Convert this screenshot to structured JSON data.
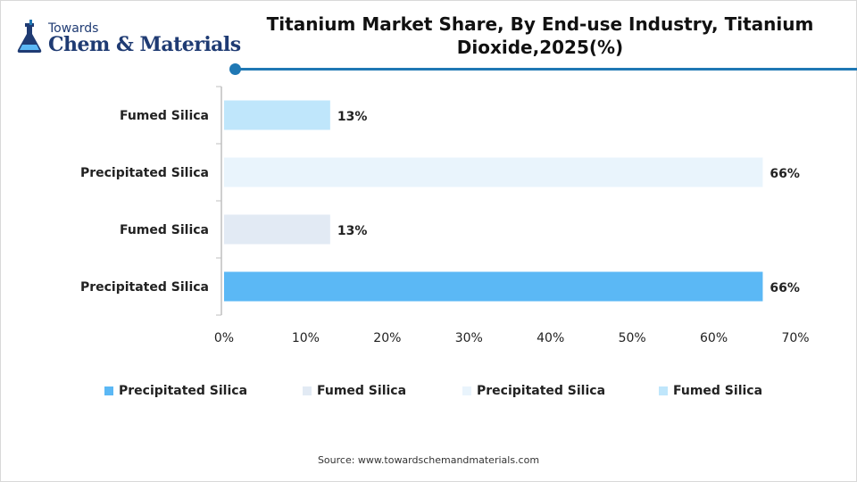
{
  "logo": {
    "line1": "Towards",
    "line2": "Chem & Materials"
  },
  "title": "Titanium Market Share, By End-use Industry, Titanium Dioxide,2025(%)",
  "source": "Source:  www.towardschemandmaterials.com",
  "colors": {
    "accent": "#1f78b4",
    "series1": "#5bb8f5",
    "series2": "#e2eaf4",
    "series3": "#e9f4fc",
    "series4": "#bfe6fb"
  },
  "chart_data": {
    "type": "bar",
    "orientation": "horizontal",
    "title": "Titanium Market Share, By End-use Industry, Titanium Dioxide,2025(%)",
    "categories": [
      "Fumed Silica",
      "Precipitated Silica",
      "Fumed Silica",
      "Precipitated Silica"
    ],
    "values": [
      13,
      66,
      13,
      66
    ],
    "data_labels": [
      "13%",
      "66%",
      "13%",
      "66%"
    ],
    "bar_colors": [
      "#bfe6fb",
      "#e9f4fc",
      "#e2eaf4",
      "#5bb8f5"
    ],
    "xlim": [
      0,
      70
    ],
    "x_ticks": [
      0,
      10,
      20,
      30,
      40,
      50,
      60,
      70
    ],
    "x_tick_labels": [
      "0%",
      "10%",
      "20%",
      "30%",
      "40%",
      "50%",
      "60%",
      "70%"
    ],
    "grid": false,
    "legend_position": "bottom",
    "legend": [
      {
        "name": "Precipitated Silica",
        "color": "#5bb8f5"
      },
      {
        "name": "Fumed Silica",
        "color": "#e2eaf4"
      },
      {
        "name": "Precipitated Silica",
        "color": "#e9f4fc"
      },
      {
        "name": "Fumed Silica",
        "color": "#bfe6fb"
      }
    ]
  }
}
